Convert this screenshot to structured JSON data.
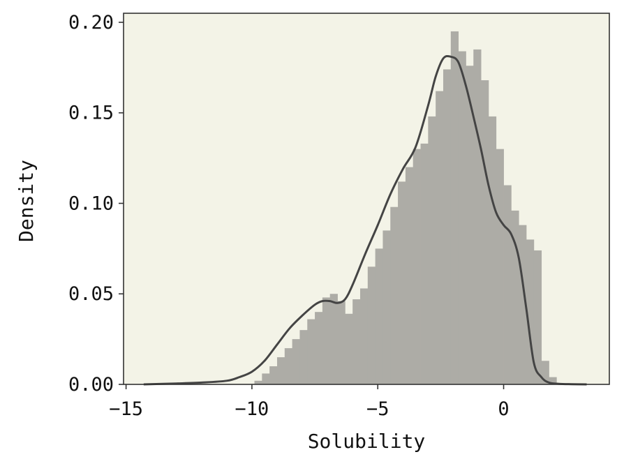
{
  "chart_data": {
    "type": "bar",
    "subtype": "histogram-with-kde",
    "title": "",
    "xlabel": "Solubility",
    "ylabel": "Density",
    "xlim": [
      -15.1,
      4.2
    ],
    "ylim": [
      0,
      0.205
    ],
    "x_ticks": [
      -15,
      -10,
      -5,
      0
    ],
    "x_tick_labels": [
      "−15",
      "−10",
      "−5",
      "0"
    ],
    "y_ticks": [
      0,
      0.05,
      0.1,
      0.15,
      0.2
    ],
    "y_tick_labels": [
      "0.00",
      "0.05",
      "0.10",
      "0.15",
      "0.20"
    ],
    "grid": false,
    "legend": "none",
    "colors": {
      "plot_background": "#f3f3e7",
      "bars": "#adaca6",
      "kde_line": "#444444",
      "axes": "#333333"
    },
    "histogram": {
      "bin_start": -9.9,
      "bin_width": 0.3,
      "densities": [
        0.002,
        0.006,
        0.01,
        0.015,
        0.02,
        0.025,
        0.03,
        0.036,
        0.04,
        0.048,
        0.05,
        0.046,
        0.039,
        0.047,
        0.053,
        0.065,
        0.075,
        0.085,
        0.098,
        0.112,
        0.12,
        0.13,
        0.133,
        0.148,
        0.162,
        0.174,
        0.195,
        0.184,
        0.176,
        0.185,
        0.168,
        0.148,
        0.13,
        0.11,
        0.096,
        0.088,
        0.08,
        0.074,
        0.013,
        0.004
      ]
    },
    "kde": {
      "x": [
        -14.3,
        -13,
        -12,
        -11,
        -10.5,
        -10,
        -9.5,
        -9,
        -8.5,
        -8,
        -7.5,
        -7.2,
        -6.9,
        -6.6,
        -6.3,
        -6,
        -5.5,
        -5,
        -4.5,
        -4,
        -3.5,
        -3,
        -2.7,
        -2.4,
        -2.1,
        -1.8,
        -1.5,
        -1.2,
        -0.9,
        -0.6,
        -0.3,
        0,
        0.3,
        0.6,
        0.9,
        1.2,
        1.5,
        1.8,
        2.2,
        2.7,
        3.3
      ],
      "y": [
        0.0,
        0.0005,
        0.001,
        0.002,
        0.004,
        0.007,
        0.013,
        0.022,
        0.031,
        0.038,
        0.044,
        0.046,
        0.046,
        0.045,
        0.047,
        0.055,
        0.072,
        0.088,
        0.105,
        0.119,
        0.131,
        0.154,
        0.17,
        0.18,
        0.181,
        0.178,
        0.165,
        0.148,
        0.13,
        0.11,
        0.095,
        0.088,
        0.083,
        0.07,
        0.042,
        0.012,
        0.004,
        0.001,
        0.0003,
        0.0001,
        0.0
      ]
    }
  }
}
